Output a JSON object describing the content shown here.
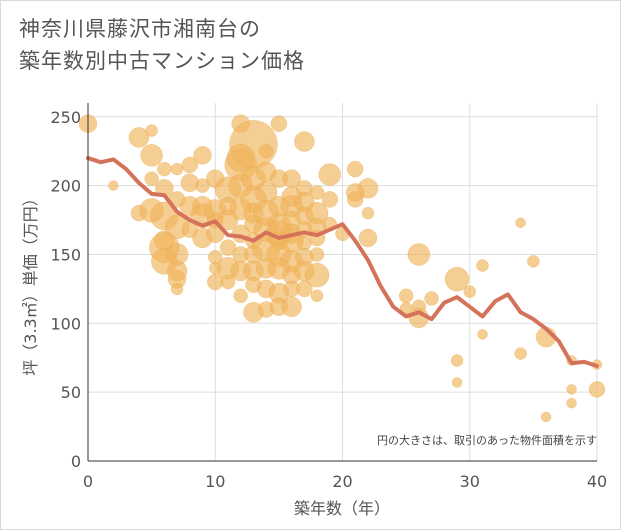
{
  "chart_data": {
    "type": "scatter",
    "title": "神奈川県藤沢市湘南台の\n築年数別中古マンション価格",
    "title_lines": [
      "神奈川県藤沢市湘南台の",
      "築年数別中古マンション価格"
    ],
    "xlabel": "築年数（年）",
    "ylabel": "坪（3.3㎡）単価（万円）",
    "xlim": [
      0,
      40
    ],
    "ylim": [
      0,
      260
    ],
    "xticks": [
      0,
      10,
      20,
      30,
      40
    ],
    "yticks": [
      0,
      50,
      100,
      150,
      200,
      250
    ],
    "grid": true,
    "annotation": "円の大きさは、取引のあった物件面積を示す",
    "colors": {
      "bubble": "#f0b45a",
      "bubble_stroke": "#e8a343",
      "line": "#d4725a",
      "grid": "#dddddd",
      "axis": "#333333"
    },
    "bubble_series": {
      "points": [
        [
          0,
          245,
          9
        ],
        [
          2,
          200,
          5
        ],
        [
          4,
          235,
          10
        ],
        [
          4,
          180,
          8
        ],
        [
          5,
          240,
          6
        ],
        [
          5,
          222,
          11
        ],
        [
          5,
          205,
          7
        ],
        [
          5,
          182,
          12
        ],
        [
          6,
          212,
          7
        ],
        [
          6,
          198,
          9
        ],
        [
          6,
          178,
          14
        ],
        [
          6,
          160,
          10
        ],
        [
          6,
          145,
          13
        ],
        [
          6,
          155,
          15
        ],
        [
          7,
          212,
          6
        ],
        [
          7,
          190,
          8
        ],
        [
          7,
          170,
          12
        ],
        [
          7,
          150,
          11
        ],
        [
          7,
          138,
          10
        ],
        [
          7,
          132,
          9
        ],
        [
          7,
          125,
          6
        ],
        [
          8,
          215,
          8
        ],
        [
          8,
          202,
          9
        ],
        [
          8,
          185,
          10
        ],
        [
          8,
          168,
          8
        ],
        [
          9,
          222,
          9
        ],
        [
          9,
          200,
          7
        ],
        [
          9,
          185,
          10
        ],
        [
          9,
          178,
          12
        ],
        [
          9,
          162,
          10
        ],
        [
          10,
          205,
          9
        ],
        [
          10,
          182,
          11
        ],
        [
          10,
          175,
          8
        ],
        [
          10,
          165,
          9
        ],
        [
          10,
          148,
          7
        ],
        [
          10,
          140,
          6
        ],
        [
          10,
          130,
          8
        ],
        [
          11,
          197,
          13
        ],
        [
          11,
          185,
          9
        ],
        [
          11,
          175,
          10
        ],
        [
          11,
          155,
          8
        ],
        [
          11,
          140,
          11
        ],
        [
          11,
          130,
          7
        ],
        [
          12,
          245,
          9
        ],
        [
          12,
          220,
          14
        ],
        [
          12,
          215,
          16
        ],
        [
          12,
          200,
          12
        ],
        [
          12,
          183,
          11
        ],
        [
          12,
          165,
          9
        ],
        [
          12,
          150,
          8
        ],
        [
          12,
          138,
          10
        ],
        [
          12,
          120,
          7
        ],
        [
          13,
          230,
          24
        ],
        [
          13,
          205,
          12
        ],
        [
          13,
          190,
          13
        ],
        [
          13,
          180,
          10
        ],
        [
          13,
          172,
          9
        ],
        [
          13,
          160,
          8
        ],
        [
          13,
          150,
          9
        ],
        [
          13,
          138,
          10
        ],
        [
          13,
          128,
          8
        ],
        [
          13,
          108,
          10
        ],
        [
          14,
          225,
          7
        ],
        [
          14,
          210,
          10
        ],
        [
          14,
          195,
          11
        ],
        [
          14,
          180,
          13
        ],
        [
          14,
          168,
          12
        ],
        [
          14,
          155,
          14
        ],
        [
          14,
          140,
          10
        ],
        [
          14,
          125,
          9
        ],
        [
          14,
          110,
          8
        ],
        [
          15,
          245,
          8
        ],
        [
          15,
          205,
          9
        ],
        [
          15,
          185,
          10
        ],
        [
          15,
          172,
          11
        ],
        [
          15,
          165,
          13
        ],
        [
          15,
          160,
          9
        ],
        [
          15,
          150,
          12
        ],
        [
          15,
          140,
          11
        ],
        [
          15,
          122,
          10
        ],
        [
          15,
          112,
          9
        ],
        [
          16,
          205,
          9
        ],
        [
          16,
          192,
          10
        ],
        [
          16,
          185,
          11
        ],
        [
          16,
          175,
          9
        ],
        [
          16,
          165,
          10
        ],
        [
          16,
          160,
          12
        ],
        [
          16,
          145,
          11
        ],
        [
          16,
          135,
          9
        ],
        [
          16,
          125,
          8
        ],
        [
          16,
          112,
          10
        ],
        [
          17,
          232,
          10
        ],
        [
          17,
          198,
          8
        ],
        [
          17,
          188,
          10
        ],
        [
          17,
          178,
          9
        ],
        [
          17,
          168,
          8
        ],
        [
          17,
          158,
          7
        ],
        [
          17,
          148,
          9
        ],
        [
          17,
          138,
          10
        ],
        [
          17,
          125,
          8
        ],
        [
          18,
          195,
          7
        ],
        [
          18,
          180,
          11
        ],
        [
          18,
          170,
          9
        ],
        [
          18,
          162,
          8
        ],
        [
          18,
          150,
          7
        ],
        [
          18,
          135,
          12
        ],
        [
          18,
          120,
          6
        ],
        [
          19,
          208,
          11
        ],
        [
          19,
          190,
          8
        ],
        [
          19,
          172,
          7
        ],
        [
          20,
          165,
          7
        ],
        [
          21,
          212,
          8
        ],
        [
          21,
          195,
          9
        ],
        [
          21,
          190,
          8
        ],
        [
          22,
          198,
          10
        ],
        [
          22,
          180,
          6
        ],
        [
          22,
          162,
          9
        ],
        [
          25,
          120,
          7
        ],
        [
          25,
          111,
          6
        ],
        [
          26,
          150,
          11
        ],
        [
          26,
          104,
          10
        ],
        [
          26,
          112,
          7
        ],
        [
          27,
          118,
          7
        ],
        [
          29,
          132,
          12
        ],
        [
          29,
          73,
          6
        ],
        [
          29,
          57,
          5
        ],
        [
          30,
          123,
          6
        ],
        [
          31,
          142,
          6
        ],
        [
          31,
          92,
          5
        ],
        [
          34,
          173,
          5
        ],
        [
          34,
          78,
          6
        ],
        [
          35,
          145,
          6
        ],
        [
          36,
          90,
          10
        ],
        [
          36,
          32,
          5
        ],
        [
          38,
          73,
          5
        ],
        [
          38,
          52,
          5
        ],
        [
          38,
          42,
          5
        ],
        [
          40,
          52,
          8
        ],
        [
          40,
          70,
          5
        ]
      ]
    },
    "series": [
      {
        "type": "line",
        "x": [
          0,
          1,
          2,
          3,
          4,
          5,
          6,
          7,
          8,
          9,
          10,
          11,
          12,
          13,
          14,
          15,
          16,
          17,
          18,
          19,
          20,
          21,
          22,
          23,
          24,
          25,
          26,
          27,
          28,
          29,
          30,
          31,
          32,
          33,
          34,
          35,
          36,
          37,
          38,
          39,
          40
        ],
        "y": [
          220,
          217,
          219,
          212,
          202,
          194,
          193,
          181,
          175,
          171,
          174,
          164,
          163,
          160,
          166,
          162,
          164,
          166,
          164,
          168,
          172,
          160,
          146,
          127,
          112,
          105,
          108,
          103,
          115,
          119,
          112,
          105,
          116,
          121,
          108,
          103,
          96,
          87,
          71,
          72,
          69
        ]
      }
    ]
  }
}
